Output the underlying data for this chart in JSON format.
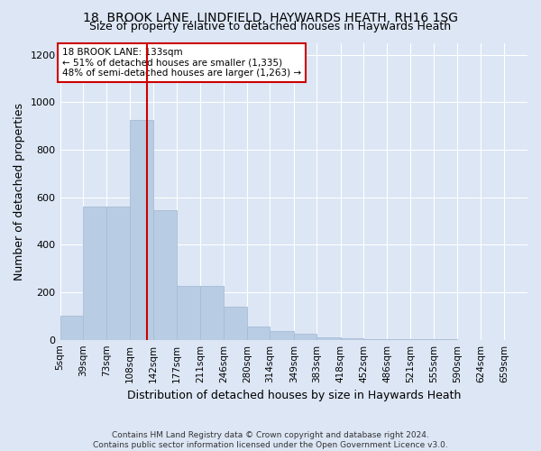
{
  "title": "18, BROOK LANE, LINDFIELD, HAYWARDS HEATH, RH16 1SG",
  "subtitle": "Size of property relative to detached houses in Haywards Heath",
  "xlabel": "Distribution of detached houses by size in Haywards Heath",
  "ylabel": "Number of detached properties",
  "footer_line1": "Contains HM Land Registry data © Crown copyright and database right 2024.",
  "footer_line2": "Contains public sector information licensed under the Open Government Licence v3.0.",
  "bar_color": "#b8cce4",
  "bar_edge_color": "#a8bcd4",
  "background_color": "#dce6f5",
  "fig_background_color": "#dce6f5",
  "property_line_x": 133,
  "property_line_color": "#cc0000",
  "annotation_text_line1": "18 BROOK LANE: 133sqm",
  "annotation_text_line2": "← 51% of detached houses are smaller (1,335)",
  "annotation_text_line3": "48% of semi-detached houses are larger (1,263) →",
  "annotation_box_color": "#cc0000",
  "annotation_fill": "#ffffff",
  "bin_edges": [
    5,
    39,
    73,
    108,
    142,
    177,
    211,
    246,
    280,
    314,
    349,
    383,
    418,
    452,
    486,
    521,
    555,
    590,
    624,
    659,
    693
  ],
  "bar_heights": [
    100,
    560,
    560,
    925,
    545,
    225,
    225,
    140,
    55,
    35,
    25,
    10,
    5,
    3,
    2,
    1,
    1,
    0,
    0,
    0
  ],
  "ylim": [
    0,
    1250
  ],
  "yticks": [
    0,
    200,
    400,
    600,
    800,
    1000,
    1200
  ],
  "grid_color": "#ffffff",
  "title_fontsize": 10,
  "subtitle_fontsize": 9,
  "axis_label_fontsize": 9,
  "tick_fontsize": 7.5
}
